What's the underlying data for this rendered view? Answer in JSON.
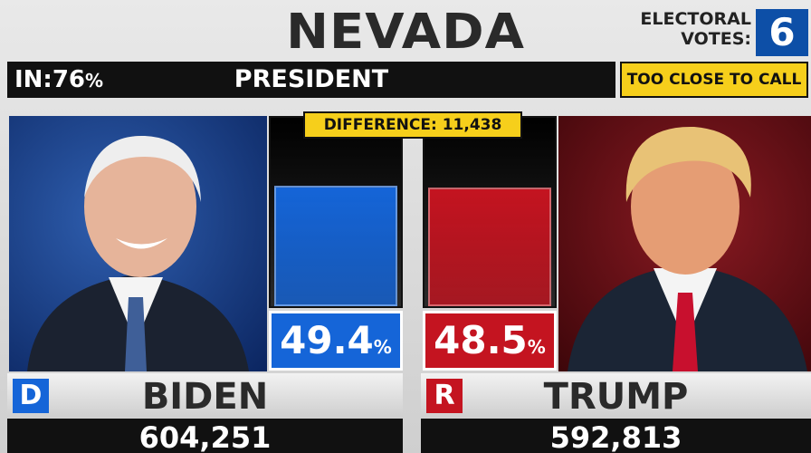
{
  "header": {
    "state": "NEVADA",
    "electoral_label_1": "ELECTORAL",
    "electoral_label_2": "VOTES:",
    "electoral_votes": 6
  },
  "status": {
    "in_label": "IN:",
    "in_percent": 76,
    "in_unit": "%",
    "race": "PRESIDENT",
    "call": "TOO CLOSE TO CALL"
  },
  "difference": "DIFFERENCE: 11,438",
  "candidates": [
    {
      "party": "D",
      "name": "BIDEN",
      "percent": 49.4,
      "unit": "%",
      "votes": "604,251",
      "color": "#1565d8"
    },
    {
      "party": "R",
      "name": "TRUMP",
      "percent": 48.5,
      "unit": "%",
      "votes": "592,813",
      "color": "#c41420"
    }
  ]
}
